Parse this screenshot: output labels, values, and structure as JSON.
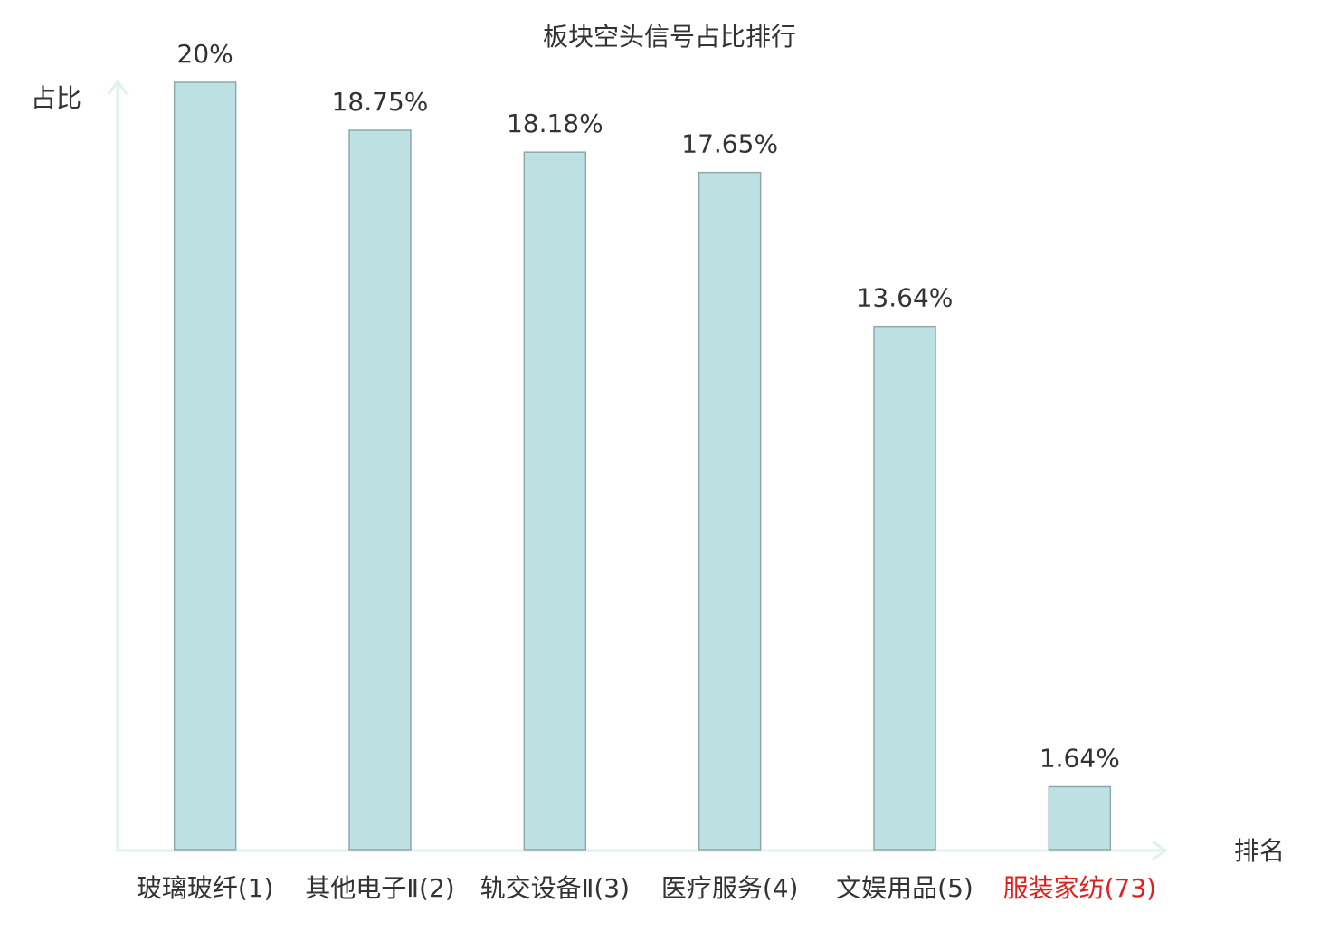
{
  "chart_data": {
    "type": "bar",
    "title": "板块空头信号占比排行",
    "y_label": "占比",
    "x_label": "排名",
    "categories": [
      "玻璃玻纤(1)",
      "其他电子Ⅱ(2)",
      "轨交设备Ⅱ(3)",
      "医疗服务(4)",
      "文娱用品(5)",
      "服装家纺(73)"
    ],
    "values": [
      20,
      18.75,
      18.18,
      17.65,
      13.64,
      1.64
    ],
    "value_labels": [
      "20%",
      "18.75%",
      "18.18%",
      "17.65%",
      "13.64%",
      "1.64%"
    ],
    "color": "#bde0e2",
    "highlight_index": 5,
    "highlight_color": "#e0201e",
    "ylim": [
      0,
      20
    ]
  }
}
